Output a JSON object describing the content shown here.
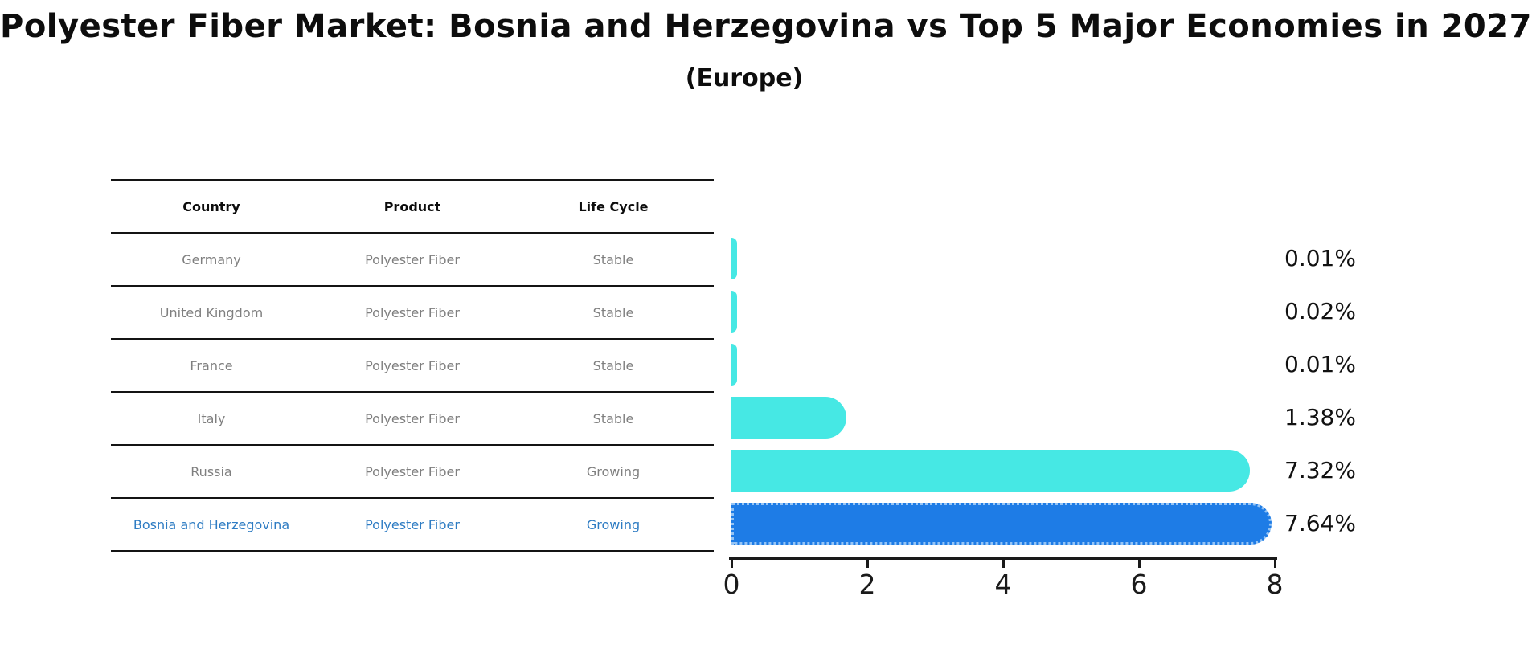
{
  "header": {
    "title": "Polyester Fiber Market: Bosnia and Herzegovina vs Top 5 Major Economies in 2027",
    "subtitle": "(Europe)"
  },
  "table": {
    "columns": [
      "Country",
      "Product",
      "Life Cycle"
    ],
    "rows": [
      {
        "country": "Germany",
        "product": "Polyester Fiber",
        "life_cycle": "Stable",
        "highlight": false
      },
      {
        "country": "United Kingdom",
        "product": "Polyester Fiber",
        "life_cycle": "Stable",
        "highlight": false
      },
      {
        "country": "France",
        "product": "Polyester Fiber",
        "life_cycle": "Stable",
        "highlight": false
      },
      {
        "country": "Italy",
        "product": "Polyester Fiber",
        "life_cycle": "Stable",
        "highlight": false
      },
      {
        "country": "Russia",
        "product": "Polyester Fiber",
        "life_cycle": "Growing",
        "highlight": false
      },
      {
        "country": "Bosnia and Herzegovina",
        "product": "Polyester Fiber",
        "life_cycle": "Growing",
        "highlight": true
      }
    ]
  },
  "chart_data": {
    "type": "bar",
    "orientation": "horizontal",
    "title": "Polyester Fiber Market: Bosnia and Herzegovina vs Top 5 Major Economies in 2027",
    "subtitle": "(Europe)",
    "categories": [
      "Germany",
      "United Kingdom",
      "France",
      "Italy",
      "Russia",
      "Bosnia and Herzegovina"
    ],
    "values": [
      0.01,
      0.02,
      0.01,
      1.38,
      7.32,
      7.64
    ],
    "value_labels": [
      "0.01%",
      "0.02%",
      "0.01%",
      "1.38%",
      "7.32%",
      "7.64%"
    ],
    "xlim": [
      0,
      8
    ],
    "xticks": [
      "0",
      "2",
      "4",
      "6",
      "8"
    ],
    "grid": false,
    "legend_position": "none",
    "bar_color": "#46e8e4",
    "highlight_color": "#1e7ce6",
    "highlight_index": 5
  },
  "colors": {
    "title_text": "#0d0d0d",
    "table_text": "#7f7f7f",
    "highlight_text": "#2e7cc3",
    "axis": "#1a1a1a"
  }
}
